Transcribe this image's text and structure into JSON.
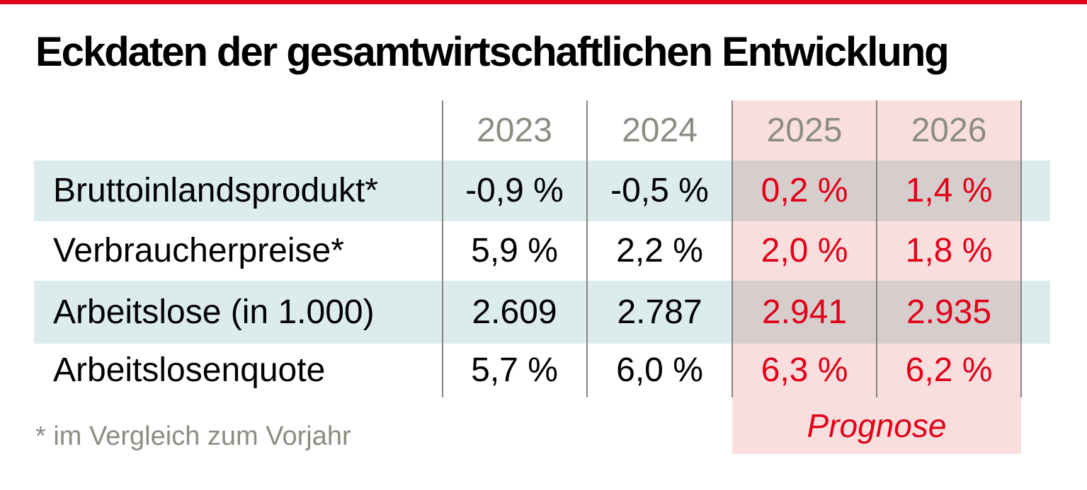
{
  "title": "Eckdaten der gesamtwirtschaftlichen Entwicklung",
  "footnote": "* im Vergleich zum Vorjahr",
  "forecast_label": "Prognose",
  "colors": {
    "accent_red": "#e10019",
    "stripe_teal": "#dcecec",
    "forecast_pink": "#f8dfdd",
    "overlap_mauve": "#d8d2d3",
    "muted_gray_text": "#8c8c82",
    "divider_gray": "#85857d",
    "text_black": "#000000"
  },
  "chart_data": {
    "type": "table",
    "title": "Eckdaten der gesamtwirtschaftlichen Entwicklung",
    "columns": [
      "2023",
      "2024",
      "2025",
      "2026"
    ],
    "forecast_columns": [
      "2025",
      "2026"
    ],
    "rows": [
      {
        "label": "Bruttoinlandsprodukt*",
        "values": [
          "-0,9 %",
          "-0,5 %",
          "0,2 %",
          "1,4 %"
        ]
      },
      {
        "label": "Verbraucherpreise*",
        "values": [
          "5,9 %",
          "2,2 %",
          "2,0 %",
          "1,8 %"
        ]
      },
      {
        "label": "Arbeitslose (in 1.000)",
        "values": [
          "2.609",
          "2.787",
          "2.941",
          "2.935"
        ]
      },
      {
        "label": "Arbeitslosenquote",
        "values": [
          "5,7 %",
          "6,0 %",
          "6,3 %",
          "6,2 %"
        ]
      }
    ],
    "forecast_label": "Prognose",
    "footnote": "* im Vergleich zum Vorjahr",
    "layout": {
      "grid": "off",
      "striped_rows": [
        1,
        3
      ],
      "highlight": "forecast columns shaded pink"
    }
  }
}
